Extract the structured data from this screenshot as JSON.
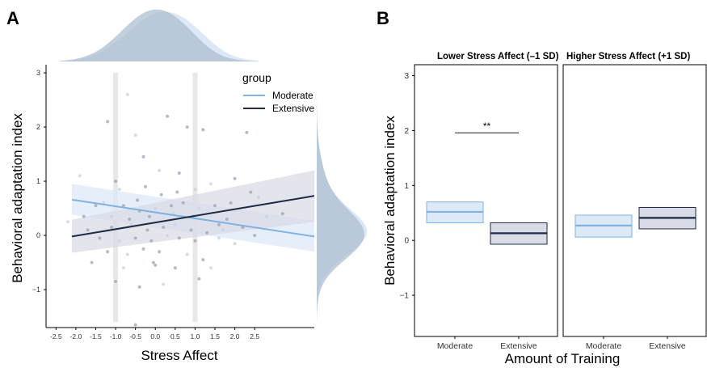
{
  "colors": {
    "moderate": "#7fb3e3",
    "extensive": "#1f2a44",
    "moderate_fill": "#dde9f7",
    "extensive_fill": "#d9dbe6",
    "density": "#aebfd0",
    "density_light": "#d8e6f4",
    "sd_band": "#e8e8e8",
    "point": "#9aa6b4"
  },
  "panel_a": {
    "letter": "A",
    "xlabel": "Stress Affect",
    "ylabel": "Behavioral adaptation index",
    "legend_title": "group",
    "legend_items": [
      "Moderate",
      "Extensive"
    ]
  },
  "panel_b": {
    "letter": "B",
    "xlabel": "Amount of Training",
    "ylabel": "Behavioral adaptation index",
    "facet_left": "Lower Stress Affect (–1 SD)",
    "facet_right": "Higher Stress Affect (+1 SD)",
    "significance": "**"
  },
  "chart_data": [
    {
      "type": "scatter",
      "panel": "A",
      "xlabel": "Stress Affect",
      "ylabel": "Behavioral adaptation index",
      "x_ticks": [
        "-2.5",
        "-2.0",
        "-1.5",
        "-1.0",
        "-0.5",
        "0.0",
        "0.5",
        "1.0",
        "1.5",
        "2.0",
        "2.5"
      ],
      "x_tick_values": [
        -2.5,
        -2.0,
        -1.5,
        -1.0,
        -0.5,
        0.0,
        0.5,
        1.0,
        1.5,
        2.0,
        2.5
      ],
      "y_ticks": [
        "−1",
        "0",
        "1",
        "2",
        "3"
      ],
      "y_tick_values": [
        -1,
        0,
        1,
        2,
        3
      ],
      "xlim": [
        -2.75,
        4.0
      ],
      "ylim": [
        -1.7,
        3.15
      ],
      "sd_lines": [
        -1.0,
        1.0
      ],
      "legend": {
        "title": "group",
        "items": [
          "Moderate",
          "Extensive"
        ],
        "position": "top-right"
      },
      "series": [
        {
          "name": "Moderate",
          "fit": {
            "x": [
              -2.1,
              4.0
            ],
            "y": [
              0.66,
              -0.02
            ]
          },
          "ci_lower": [
            0.38,
            -0.3
          ],
          "ci_upper": [
            0.95,
            0.27
          ]
        },
        {
          "name": "Extensive",
          "fit": {
            "x": [
              -2.1,
              4.0
            ],
            "y": [
              -0.02,
              0.73
            ]
          },
          "ci_lower": [
            -0.32,
            0.25
          ],
          "ci_upper": [
            0.29,
            1.2
          ]
        }
      ],
      "points": [
        [
          -0.7,
          2.6
        ],
        [
          -1.2,
          2.1
        ],
        [
          0.3,
          2.2
        ],
        [
          -0.5,
          1.85
        ],
        [
          1.2,
          1.95
        ],
        [
          2.3,
          1.9
        ],
        [
          -1.9,
          1.1
        ],
        [
          -1.0,
          1.0
        ],
        [
          0.6,
          1.15
        ],
        [
          1.4,
          0.95
        ],
        [
          0.8,
          2.0
        ],
        [
          -0.3,
          1.45
        ],
        [
          0.1,
          1.2
        ],
        [
          2.0,
          1.05
        ],
        [
          -1.5,
          0.55
        ],
        [
          -1.3,
          0.6
        ],
        [
          -0.8,
          0.55
        ],
        [
          -0.4,
          0.45
        ],
        [
          0.0,
          0.5
        ],
        [
          0.4,
          0.55
        ],
        [
          0.7,
          0.6
        ],
        [
          1.1,
          0.5
        ],
        [
          1.5,
          0.55
        ],
        [
          1.9,
          0.6
        ],
        [
          2.6,
          0.7
        ],
        [
          -1.7,
          0.1
        ],
        [
          -1.1,
          0.15
        ],
        [
          -0.6,
          0.2
        ],
        [
          -0.2,
          0.1
        ],
        [
          0.2,
          0.15
        ],
        [
          0.5,
          0.2
        ],
        [
          0.9,
          0.1
        ],
        [
          1.3,
          0.05
        ],
        [
          1.7,
          0.1
        ],
        [
          2.2,
          0.15
        ],
        [
          -1.4,
          -0.05
        ],
        [
          -0.9,
          -0.1
        ],
        [
          -0.5,
          -0.05
        ],
        [
          -0.1,
          -0.1
        ],
        [
          0.3,
          0.0
        ],
        [
          0.6,
          -0.05
        ],
        [
          1.0,
          -0.1
        ],
        [
          1.6,
          -0.05
        ],
        [
          2.5,
          0.0
        ],
        [
          -1.2,
          -0.3
        ],
        [
          -0.7,
          -0.35
        ],
        [
          -0.3,
          -0.25
        ],
        [
          0.1,
          -0.3
        ],
        [
          0.8,
          -0.35
        ],
        [
          1.2,
          -0.45
        ],
        [
          -1.6,
          -0.5
        ],
        [
          -0.8,
          -0.6
        ],
        [
          0.0,
          -0.55
        ],
        [
          0.5,
          -0.6
        ],
        [
          1.4,
          -0.6
        ],
        [
          -1.0,
          -0.85
        ],
        [
          -0.4,
          -0.95
        ],
        [
          0.2,
          -0.9
        ],
        [
          1.1,
          -0.8
        ],
        [
          -0.5,
          -1.65
        ],
        [
          -1.1,
          0.35
        ],
        [
          -0.65,
          0.3
        ],
        [
          -0.15,
          0.35
        ],
        [
          0.45,
          0.4
        ],
        [
          0.95,
          0.35
        ],
        [
          1.8,
          0.3
        ],
        [
          2.8,
          0.35
        ],
        [
          3.2,
          0.4
        ],
        [
          -1.8,
          0.35
        ],
        [
          -2.2,
          0.25
        ],
        [
          0.15,
          0.75
        ],
        [
          0.55,
          0.8
        ],
        [
          1.0,
          0.85
        ],
        [
          -0.25,
          0.9
        ],
        [
          2.4,
          0.8
        ],
        [
          -0.9,
          0.85
        ],
        [
          -0.05,
          -0.5
        ],
        [
          1.6,
          0.2
        ],
        [
          2.0,
          -0.15
        ],
        [
          -0.45,
          0.65
        ]
      ]
    },
    {
      "type": "bar",
      "panel": "B",
      "xlabel": "Amount of Training",
      "ylabel": "Behavioral adaptation index",
      "categories": [
        "Moderate",
        "Extensive"
      ],
      "y_ticks": [
        "−1",
        "0",
        "1",
        "2",
        "3"
      ],
      "y_tick_values": [
        -1,
        0,
        1,
        2,
        3
      ],
      "ylim": [
        -1.75,
        3.2
      ],
      "facets": [
        {
          "title": "Lower Stress Affect (–1 SD)",
          "series": [
            {
              "name": "Moderate",
              "mean": 0.52,
              "lower": 0.32,
              "upper": 0.7
            },
            {
              "name": "Extensive",
              "mean": 0.13,
              "lower": -0.07,
              "upper": 0.32
            }
          ],
          "annotation": {
            "text": "**",
            "y": 1.96
          }
        },
        {
          "title": "Higher Stress Affect (+1 SD)",
          "series": [
            {
              "name": "Moderate",
              "mean": 0.27,
              "lower": 0.06,
              "upper": 0.46
            },
            {
              "name": "Extensive",
              "mean": 0.41,
              "lower": 0.21,
              "upper": 0.6
            }
          ]
        }
      ]
    }
  ]
}
